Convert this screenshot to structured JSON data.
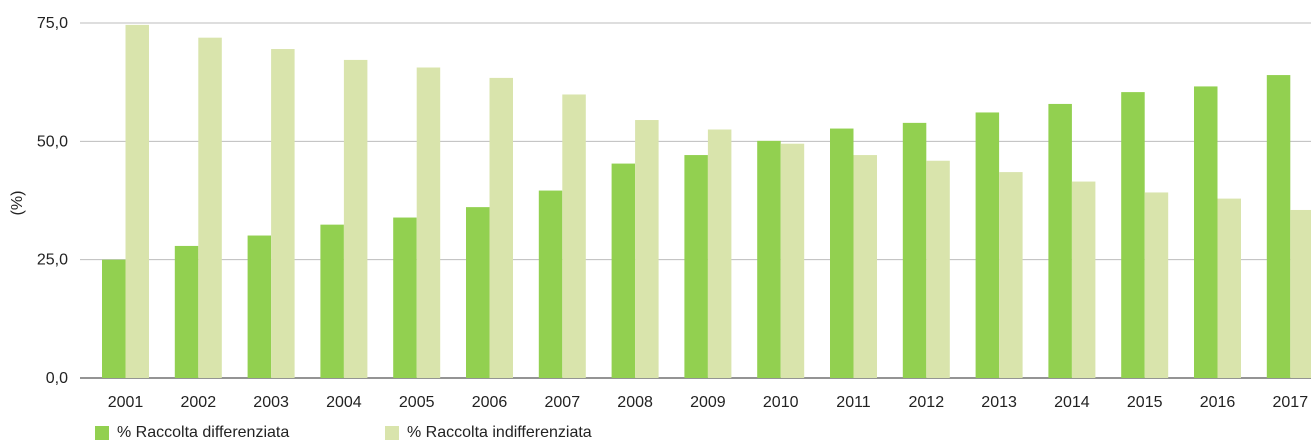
{
  "chart_data": {
    "type": "bar",
    "ylabel": "(%)",
    "ylim": [
      0,
      75
    ],
    "yticks": [
      "0,0",
      "25,0",
      "50,0",
      "75,0"
    ],
    "grid": true,
    "legend_position": "bottom-left",
    "categories": [
      "2001",
      "2002",
      "2003",
      "2004",
      "2005",
      "2006",
      "2007",
      "2008",
      "2009",
      "2010",
      "2011",
      "2012",
      "2013",
      "2014",
      "2015",
      "2016",
      "2017"
    ],
    "series": [
      {
        "name": "% Raccolta differenziata",
        "color": "#92d050",
        "values": [
          25.0,
          27.9,
          30.1,
          32.4,
          33.9,
          36.1,
          39.6,
          45.3,
          47.1,
          50.1,
          52.7,
          53.9,
          56.1,
          57.9,
          60.4,
          61.6,
          64.0
        ]
      },
      {
        "name": "% Raccolta indifferenziata",
        "color": "#d9e4ac",
        "values": [
          74.6,
          71.9,
          69.5,
          67.2,
          65.6,
          63.4,
          59.9,
          54.5,
          52.5,
          49.5,
          47.1,
          45.9,
          43.5,
          41.5,
          39.2,
          37.9,
          35.5
        ]
      }
    ]
  }
}
